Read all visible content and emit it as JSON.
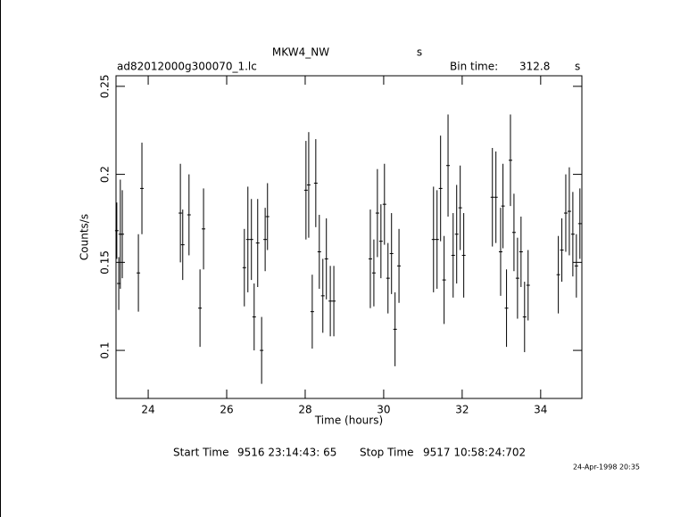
{
  "chart_data": {
    "type": "errorbar",
    "title": "MKW4_NW",
    "title_unit": "s",
    "file_name": "ad82012000g300070_1.lc",
    "bin_time_label": "Bin time:",
    "bin_time": "312.8",
    "bin_time_unit": "s",
    "xlabel": "Time (hours)",
    "ylabel": "Counts/s",
    "start_label": "Start Time",
    "start_time": "9516 23:14:43: 65",
    "stop_label": "Stop Time",
    "stop_time": "9517 10:58:24:702",
    "timestamp": "24-Apr-1998 20:35",
    "color": "#000000",
    "xlim": [
      23.18,
      35.05
    ],
    "ylim": [
      0.0727,
      0.256
    ],
    "xticks": [
      24,
      26,
      28,
      30,
      32,
      34
    ],
    "yticks": [
      0.1,
      0.15,
      0.2,
      0.25
    ],
    "x": [
      23.2,
      23.25,
      23.29,
      23.34,
      23.75,
      23.84,
      24.82,
      24.88,
      25.04,
      25.32,
      25.41,
      26.45,
      26.54,
      26.63,
      26.7,
      26.79,
      26.89,
      26.98,
      27.04,
      28.02,
      28.09,
      28.18,
      28.27,
      28.36,
      28.45,
      28.54,
      28.64,
      28.73,
      29.66,
      29.75,
      29.84,
      29.93,
      30.02,
      30.11,
      30.2,
      30.29,
      30.39,
      31.27,
      31.36,
      31.45,
      31.54,
      31.64,
      31.77,
      31.86,
      31.95,
      32.04,
      32.77,
      32.86,
      32.98,
      33.04,
      33.13,
      33.23,
      33.32,
      33.41,
      33.5,
      33.59,
      33.68,
      34.45,
      34.54,
      34.64,
      34.73,
      34.82,
      34.91,
      35.0
    ],
    "values": [
      0.168,
      0.138,
      0.166,
      0.166,
      0.144,
      0.192,
      0.178,
      0.16,
      0.177,
      0.124,
      0.169,
      0.147,
      0.163,
      0.163,
      0.119,
      0.161,
      0.1,
      0.163,
      0.176,
      0.191,
      0.194,
      0.122,
      0.195,
      0.156,
      0.131,
      0.152,
      0.128,
      0.128,
      0.152,
      0.144,
      0.178,
      0.162,
      0.183,
      0.141,
      0.155,
      0.112,
      0.148,
      0.163,
      0.163,
      0.192,
      0.14,
      0.205,
      0.154,
      0.166,
      0.181,
      0.154,
      0.187,
      0.187,
      0.156,
      0.182,
      0.124,
      0.208,
      0.167,
      0.141,
      0.156,
      0.119,
      0.137,
      0.143,
      0.157,
      0.178,
      0.179,
      0.166,
      0.148,
      0.172
    ],
    "errors": [
      0.016,
      0.015,
      0.031,
      0.025,
      0.022,
      0.026,
      0.028,
      0.02,
      0.023,
      0.022,
      0.023,
      0.022,
      0.03,
      0.023,
      0.019,
      0.025,
      0.019,
      0.018,
      0.019,
      0.028,
      0.03,
      0.021,
      0.025,
      0.021,
      0.021,
      0.023,
      0.02,
      0.02,
      0.028,
      0.019,
      0.025,
      0.021,
      0.023,
      0.02,
      0.023,
      0.021,
      0.021,
      0.03,
      0.028,
      0.03,
      0.025,
      0.029,
      0.024,
      0.028,
      0.024,
      0.024,
      0.028,
      0.026,
      0.025,
      0.024,
      0.022,
      0.026,
      0.022,
      0.023,
      0.02,
      0.02,
      0.02,
      0.022,
      0.018,
      0.022,
      0.025,
      0.024,
      0.018,
      0.02
    ]
  }
}
